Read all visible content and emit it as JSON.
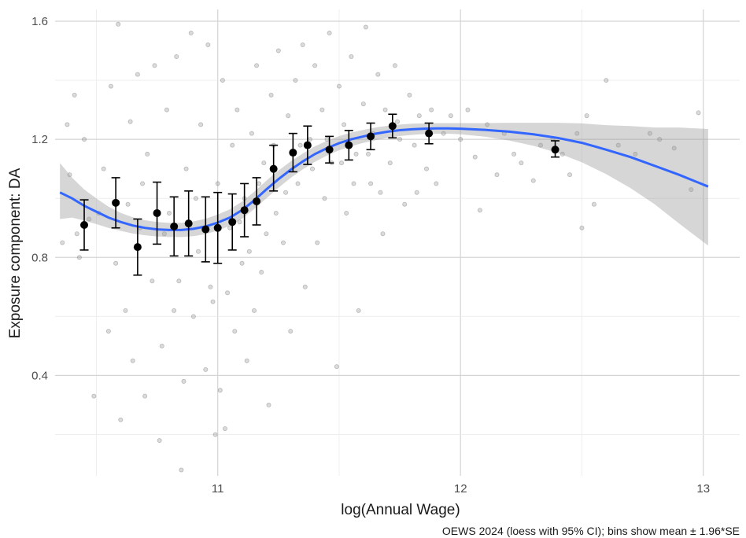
{
  "chart_data": {
    "type": "scatter",
    "title": "",
    "xlabel": "log(Annual Wage)",
    "ylabel": "Exposure component: DA",
    "caption": "OEWS 2024 (loess with 95% CI); bins show mean ± 1.96*SE",
    "xlim": [
      10.33,
      13.15
    ],
    "ylim": [
      0.06,
      1.64
    ],
    "x_ticks": [
      11,
      12,
      13
    ],
    "y_ticks": [
      0.4,
      0.8,
      1.2,
      1.6
    ],
    "x_tick_labels": [
      "11",
      "12",
      "13"
    ],
    "y_tick_labels": [
      "0.4",
      "0.8",
      "1.2",
      "1.6"
    ],
    "grid": true,
    "colors": {
      "loess": "#3366ff",
      "ci_band": "#999999",
      "points": "#7f7f7f",
      "bins": "#000000"
    },
    "loess_fit": {
      "x": [
        10.35,
        10.4,
        10.45,
        10.5,
        10.55,
        10.6,
        10.65,
        10.7,
        10.75,
        10.8,
        10.85,
        10.9,
        10.95,
        11.0,
        11.05,
        11.1,
        11.15,
        11.2,
        11.25,
        11.3,
        11.35,
        11.4,
        11.45,
        11.5,
        11.55,
        11.6,
        11.65,
        11.7,
        11.75,
        11.8,
        11.85,
        11.9,
        11.95,
        12.0,
        12.1,
        12.2,
        12.3,
        12.4,
        12.5,
        12.6,
        12.7,
        12.8,
        12.9,
        13.02
      ],
      "y": [
        1.02,
        1.0,
        0.975,
        0.955,
        0.935,
        0.92,
        0.908,
        0.9,
        0.895,
        0.893,
        0.893,
        0.897,
        0.905,
        0.918,
        0.935,
        0.96,
        0.993,
        1.03,
        1.065,
        1.097,
        1.125,
        1.15,
        1.17,
        1.187,
        1.2,
        1.21,
        1.219,
        1.226,
        1.231,
        1.234,
        1.236,
        1.237,
        1.237,
        1.236,
        1.232,
        1.226,
        1.217,
        1.205,
        1.188,
        1.165,
        1.14,
        1.11,
        1.08,
        1.04
      ],
      "lower": [
        0.93,
        0.935,
        0.925,
        0.913,
        0.9,
        0.89,
        0.881,
        0.875,
        0.871,
        0.869,
        0.869,
        0.872,
        0.879,
        0.891,
        0.907,
        0.931,
        0.964,
        1.0,
        1.036,
        1.069,
        1.098,
        1.124,
        1.145,
        1.163,
        1.177,
        1.188,
        1.197,
        1.205,
        1.211,
        1.215,
        1.218,
        1.219,
        1.219,
        1.217,
        1.209,
        1.196,
        1.178,
        1.154,
        1.122,
        1.082,
        1.035,
        0.98,
        0.915,
        0.84
      ],
      "upper": [
        1.12,
        1.07,
        1.03,
        1.0,
        0.972,
        0.951,
        0.936,
        0.926,
        0.92,
        0.917,
        0.917,
        0.922,
        0.931,
        0.945,
        0.963,
        0.989,
        1.022,
        1.06,
        1.094,
        1.125,
        1.152,
        1.176,
        1.195,
        1.211,
        1.223,
        1.232,
        1.24,
        1.246,
        1.25,
        1.253,
        1.254,
        1.255,
        1.255,
        1.255,
        1.255,
        1.256,
        1.256,
        1.256,
        1.254,
        1.248,
        1.245,
        1.24,
        1.24,
        1.235
      ]
    },
    "bins": [
      {
        "x": 10.45,
        "mean": 0.91,
        "low": 0.825,
        "high": 0.995
      },
      {
        "x": 10.58,
        "mean": 0.985,
        "low": 0.9,
        "high": 1.07
      },
      {
        "x": 10.67,
        "mean": 0.835,
        "low": 0.74,
        "high": 0.93
      },
      {
        "x": 10.75,
        "mean": 0.95,
        "low": 0.845,
        "high": 1.055
      },
      {
        "x": 10.82,
        "mean": 0.905,
        "low": 0.805,
        "high": 1.005
      },
      {
        "x": 10.88,
        "mean": 0.915,
        "low": 0.805,
        "high": 1.025
      },
      {
        "x": 10.95,
        "mean": 0.895,
        "low": 0.785,
        "high": 1.005
      },
      {
        "x": 11.0,
        "mean": 0.9,
        "low": 0.78,
        "high": 1.02
      },
      {
        "x": 11.06,
        "mean": 0.92,
        "low": 0.825,
        "high": 1.015
      },
      {
        "x": 11.11,
        "mean": 0.96,
        "low": 0.87,
        "high": 1.05
      },
      {
        "x": 11.16,
        "mean": 0.99,
        "low": 0.91,
        "high": 1.07
      },
      {
        "x": 11.23,
        "mean": 1.1,
        "low": 1.025,
        "high": 1.18
      },
      {
        "x": 11.31,
        "mean": 1.155,
        "low": 1.09,
        "high": 1.22
      },
      {
        "x": 11.37,
        "mean": 1.18,
        "low": 1.115,
        "high": 1.245
      },
      {
        "x": 11.46,
        "mean": 1.165,
        "low": 1.12,
        "high": 1.21
      },
      {
        "x": 11.54,
        "mean": 1.18,
        "low": 1.13,
        "high": 1.23
      },
      {
        "x": 11.63,
        "mean": 1.21,
        "low": 1.165,
        "high": 1.255
      },
      {
        "x": 11.72,
        "mean": 1.245,
        "low": 1.205,
        "high": 1.285
      },
      {
        "x": 11.87,
        "mean": 1.22,
        "low": 1.185,
        "high": 1.255
      },
      {
        "x": 12.39,
        "mean": 1.165,
        "low": 1.14,
        "high": 1.195
      }
    ],
    "scatter": [
      [
        10.36,
        0.85
      ],
      [
        10.38,
        1.25
      ],
      [
        10.39,
        1.08
      ],
      [
        10.41,
        1.35
      ],
      [
        10.43,
        0.8
      ],
      [
        10.45,
        1.2
      ],
      [
        10.47,
        0.93
      ],
      [
        10.49,
        0.33
      ],
      [
        10.51,
        0.95
      ],
      [
        10.53,
        1.1
      ],
      [
        10.55,
        0.55
      ],
      [
        10.56,
        1.38
      ],
      [
        10.58,
        0.78
      ],
      [
        10.59,
        1.59
      ],
      [
        10.6,
        0.25
      ],
      [
        10.62,
        0.62
      ],
      [
        10.64,
        1.26
      ],
      [
        10.65,
        0.45
      ],
      [
        10.67,
        1.42
      ],
      [
        10.68,
        0.9
      ],
      [
        10.7,
        0.33
      ],
      [
        10.71,
        1.15
      ],
      [
        10.73,
        0.72
      ],
      [
        10.74,
        1.45
      ],
      [
        10.76,
        0.18
      ],
      [
        10.77,
        0.5
      ],
      [
        10.79,
        1.3
      ],
      [
        10.8,
        0.95
      ],
      [
        10.82,
        0.62
      ],
      [
        10.83,
        1.48
      ],
      [
        10.85,
        0.08
      ],
      [
        10.86,
        0.38
      ],
      [
        10.87,
        1.1
      ],
      [
        10.89,
        1.56
      ],
      [
        10.9,
        0.6
      ],
      [
        10.92,
        0.82
      ],
      [
        10.93,
        1.25
      ],
      [
        10.95,
        0.42
      ],
      [
        10.96,
        1.52
      ],
      [
        10.97,
        0.7
      ],
      [
        10.99,
        0.2
      ],
      [
        11.0,
        1.05
      ],
      [
        11.01,
        0.35
      ],
      [
        11.02,
        1.4
      ],
      [
        11.03,
        0.22
      ],
      [
        11.05,
        0.9
      ],
      [
        11.06,
        1.18
      ],
      [
        11.07,
        0.55
      ],
      [
        11.08,
        1.3
      ],
      [
        11.1,
        0.78
      ],
      [
        11.11,
        1.0
      ],
      [
        11.12,
        0.45
      ],
      [
        11.14,
        1.22
      ],
      [
        11.15,
        0.62
      ],
      [
        11.16,
        1.45
      ],
      [
        11.18,
        0.75
      ],
      [
        11.19,
        1.12
      ],
      [
        11.21,
        0.3
      ],
      [
        11.22,
        1.35
      ],
      [
        11.24,
        0.95
      ],
      [
        11.25,
        1.5
      ],
      [
        11.27,
        0.85
      ],
      [
        11.29,
        1.28
      ],
      [
        11.3,
        0.55
      ],
      [
        11.32,
        1.4
      ],
      [
        11.33,
        1.05
      ],
      [
        11.35,
        1.52
      ],
      [
        11.36,
        0.7
      ],
      [
        11.38,
        1.2
      ],
      [
        11.4,
        1.45
      ],
      [
        11.41,
        0.85
      ],
      [
        11.43,
        1.3
      ],
      [
        11.44,
        1.0
      ],
      [
        11.46,
        1.56
      ],
      [
        11.47,
        1.12
      ],
      [
        11.49,
        0.43
      ],
      [
        11.5,
        1.38
      ],
      [
        11.52,
        1.25
      ],
      [
        11.53,
        0.95
      ],
      [
        11.55,
        1.48
      ],
      [
        11.57,
        1.15
      ],
      [
        11.58,
        0.62
      ],
      [
        11.6,
        1.32
      ],
      [
        11.61,
        1.58
      ],
      [
        11.63,
        1.05
      ],
      [
        11.64,
        1.22
      ],
      [
        11.66,
        1.42
      ],
      [
        11.68,
        0.88
      ],
      [
        11.69,
        1.3
      ],
      [
        11.71,
        1.12
      ],
      [
        11.73,
        1.45
      ],
      [
        11.75,
        1.2
      ],
      [
        11.77,
        0.98
      ],
      [
        11.79,
        1.35
      ],
      [
        11.81,
        1.18
      ],
      [
        11.83,
        1.28
      ],
      [
        11.86,
        1.1
      ],
      [
        11.88,
        1.3
      ],
      [
        11.9,
        1.05
      ],
      [
        11.93,
        1.22
      ],
      [
        11.96,
        1.28
      ],
      [
        12.0,
        1.2
      ],
      [
        12.03,
        1.3
      ],
      [
        12.06,
        1.14
      ],
      [
        12.08,
        0.96
      ],
      [
        12.11,
        1.25
      ],
      [
        12.15,
        1.08
      ],
      [
        12.18,
        1.22
      ],
      [
        12.22,
        1.15
      ],
      [
        12.25,
        1.12
      ],
      [
        12.3,
        1.06
      ],
      [
        12.33,
        1.18
      ],
      [
        12.38,
        1.2
      ],
      [
        12.42,
        1.15
      ],
      [
        12.45,
        1.08
      ],
      [
        12.48,
        1.22
      ],
      [
        12.5,
        0.9
      ],
      [
        12.52,
        1.28
      ],
      [
        12.55,
        0.98
      ],
      [
        12.6,
        1.4
      ],
      [
        12.65,
        1.18
      ],
      [
        12.72,
        1.15
      ],
      [
        12.78,
        1.22
      ],
      [
        12.82,
        1.2
      ],
      [
        12.88,
        1.17
      ],
      [
        12.95,
        1.03
      ],
      [
        12.98,
        1.29
      ],
      [
        10.42,
        0.88
      ],
      [
        10.63,
        0.98
      ],
      [
        10.69,
        1.05
      ],
      [
        10.78,
        0.88
      ],
      [
        10.84,
        0.72
      ],
      [
        10.91,
        1.0
      ],
      [
        10.98,
        0.65
      ],
      [
        11.04,
        0.68
      ],
      [
        11.09,
        0.92
      ],
      [
        11.13,
        0.82
      ],
      [
        11.17,
        1.05
      ],
      [
        11.2,
        0.88
      ],
      [
        11.23,
        1.18
      ],
      [
        11.28,
        1.02
      ],
      [
        11.34,
        1.18
      ],
      [
        11.39,
        1.1
      ],
      [
        11.45,
        1.2
      ],
      [
        11.51,
        1.12
      ],
      [
        11.56,
        1.05
      ],
      [
        11.62,
        1.15
      ],
      [
        11.67,
        1.02
      ],
      [
        11.74,
        1.26
      ],
      [
        11.82,
        1.02
      ]
    ]
  }
}
